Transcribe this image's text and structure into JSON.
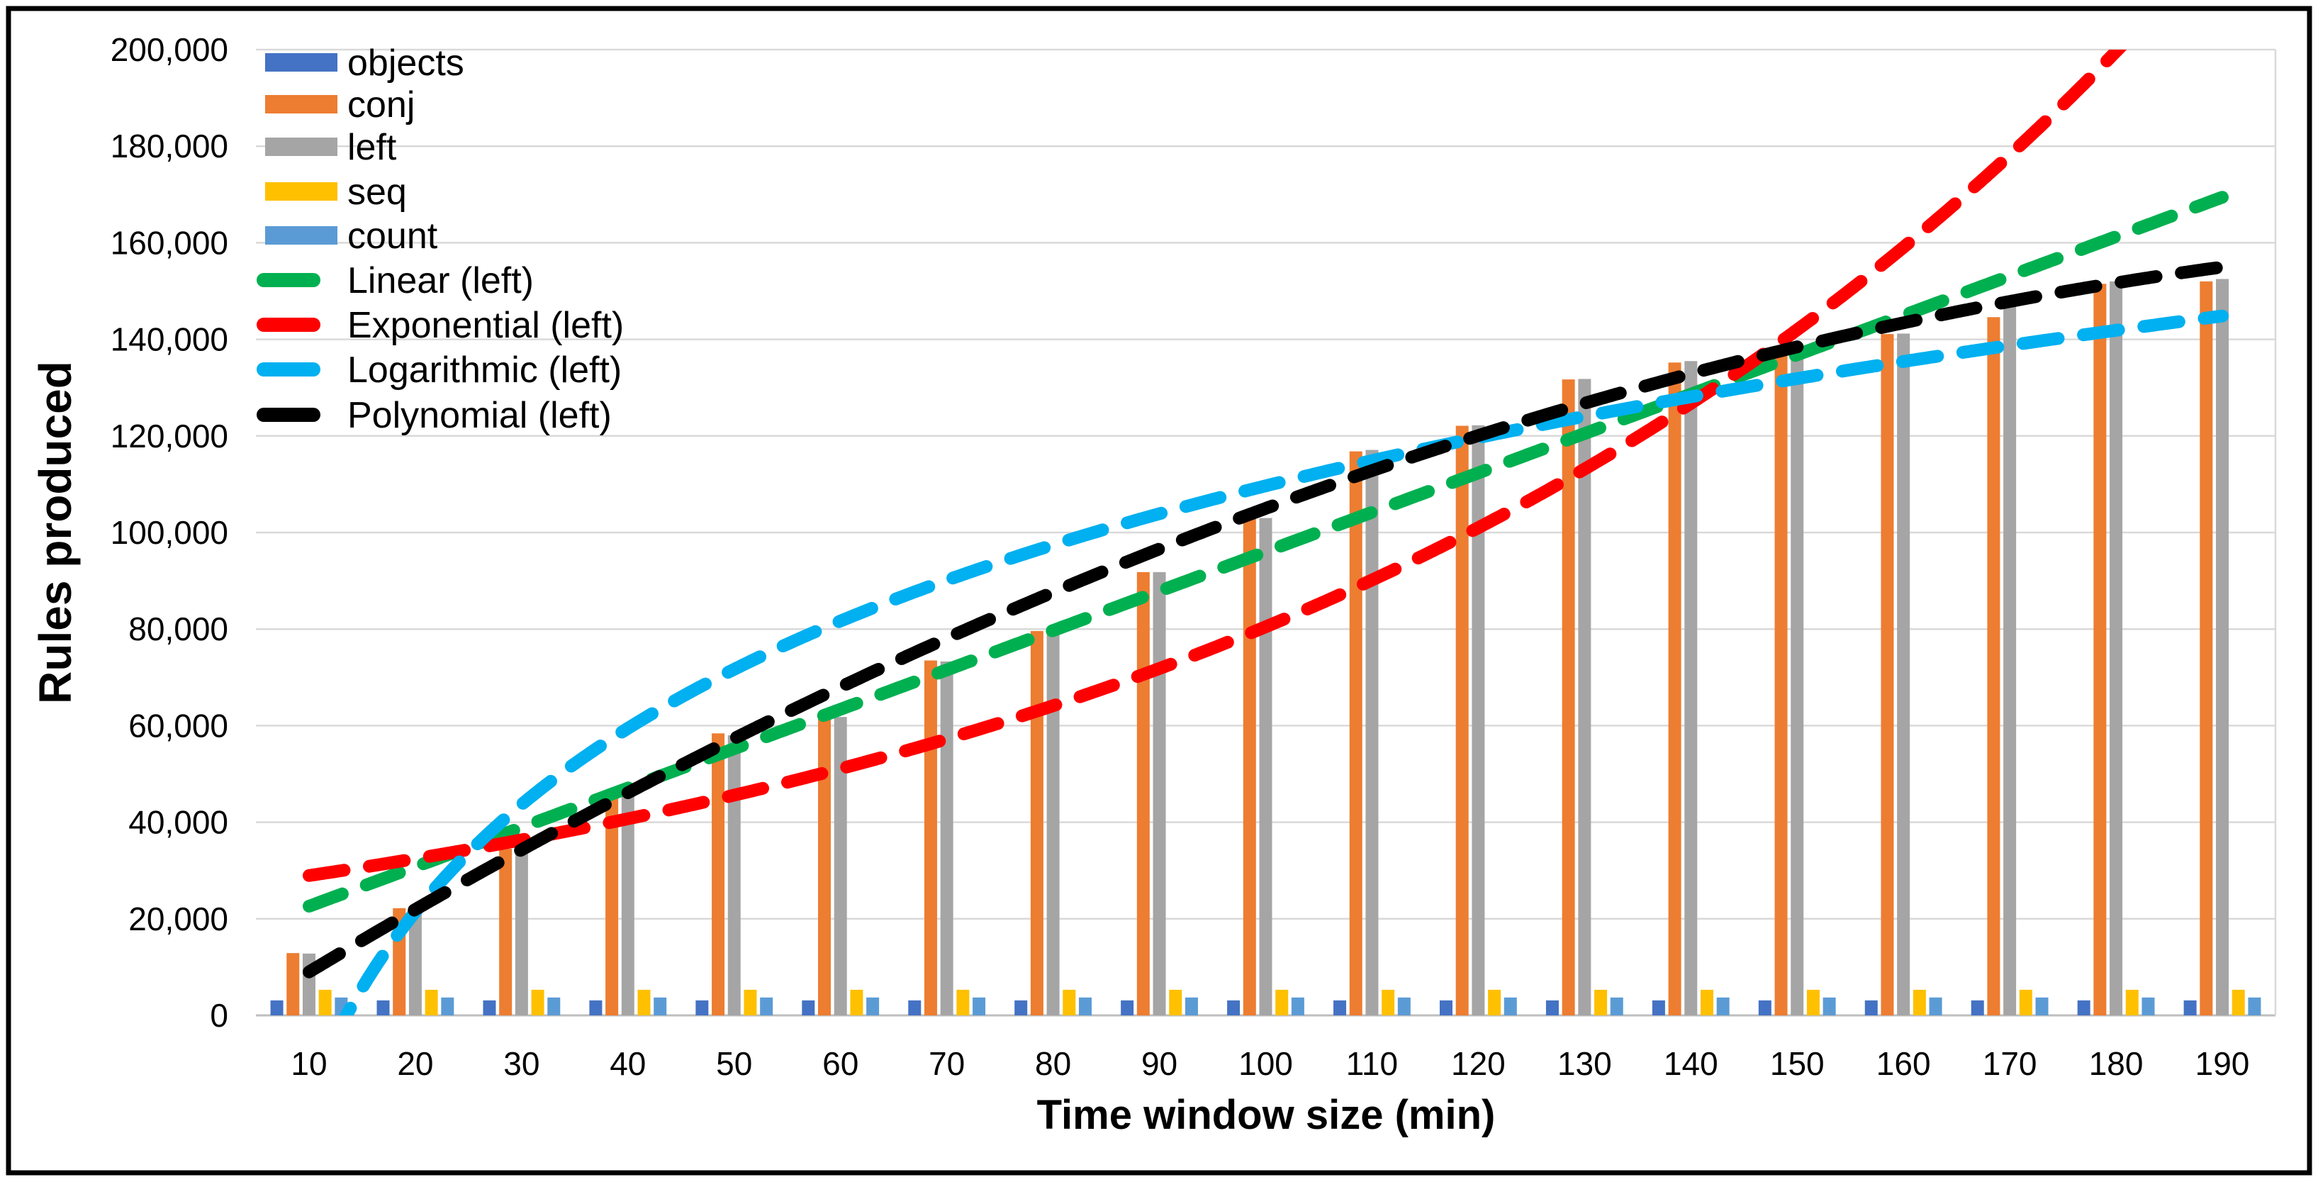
{
  "figure": {
    "background_color": "#FFFFFF",
    "border_color": "#000000",
    "gridline_color": "#D9D9D9",
    "axis_line_color": "#BFBFBF"
  },
  "y_axis": {
    "title": "Rules produced",
    "min": 0,
    "max": 200000,
    "tick_step": 20000,
    "tick_labels": [
      "0",
      "20,000",
      "40,000",
      "60,000",
      "80,000",
      "100,000",
      "120,000",
      "140,000",
      "160,000",
      "180,000",
      "200,000"
    ],
    "tick_values": [
      0,
      20000,
      40000,
      60000,
      80000,
      100000,
      120000,
      140000,
      160000,
      180000,
      200000
    ]
  },
  "x_axis": {
    "title": "Time window size (min)",
    "tick_labels": [
      "10",
      "20",
      "30",
      "40",
      "50",
      "60",
      "70",
      "80",
      "90",
      "100",
      "110",
      "120",
      "130",
      "140",
      "150",
      "160",
      "170",
      "180",
      "190"
    ]
  },
  "legend": [
    {
      "label": "objects",
      "kind": "bar",
      "color": "#4472C4"
    },
    {
      "label": "conj",
      "kind": "bar",
      "color": "#ED7D31"
    },
    {
      "label": "left",
      "kind": "bar",
      "color": "#A5A5A5"
    },
    {
      "label": "seq",
      "kind": "bar",
      "color": "#FFC000"
    },
    {
      "label": "count",
      "kind": "bar",
      "color": "#5B9BD5"
    },
    {
      "label": "Linear (left)",
      "kind": "line",
      "color": "#00B050"
    },
    {
      "label": "Exponential (left)",
      "kind": "line",
      "color": "#FF0000"
    },
    {
      "label": "Logarithmic (left)",
      "kind": "line",
      "color": "#00B0F0"
    },
    {
      "label": "Polynomial (left)",
      "kind": "line",
      "color": "#000000"
    }
  ],
  "chart_data": {
    "type": "bar",
    "subtype": "grouped-bars-with-dashed-trendlines",
    "title": "",
    "xlabel": "Time window size (min)",
    "ylabel": "Rules produced",
    "ylim": [
      0,
      200000
    ],
    "grid": "horizontal",
    "legend_position": "top-left-inside",
    "categories": [
      10,
      20,
      30,
      40,
      50,
      60,
      70,
      80,
      90,
      100,
      110,
      120,
      130,
      140,
      150,
      160,
      170,
      180,
      190
    ],
    "series": [
      {
        "name": "objects",
        "color": "#4472C4",
        "values": [
          3100,
          3100,
          3100,
          3100,
          3100,
          3100,
          3100,
          3100,
          3100,
          3100,
          3100,
          3100,
          3100,
          3100,
          3100,
          3100,
          3100,
          3100,
          3100
        ]
      },
      {
        "name": "conj",
        "color": "#ED7D31",
        "values": [
          12900,
          22200,
          34500,
          46000,
          58400,
          61800,
          73500,
          79600,
          91800,
          103700,
          116800,
          122100,
          131700,
          135200,
          138500,
          141100,
          144600,
          151500,
          152000
        ]
      },
      {
        "name": "left",
        "color": "#A5A5A5",
        "values": [
          12800,
          22200,
          35800,
          45800,
          58000,
          61800,
          73300,
          79700,
          91800,
          103000,
          117100,
          122200,
          131800,
          135500,
          138600,
          141200,
          147000,
          152000,
          152500
        ]
      },
      {
        "name": "seq",
        "color": "#FFC000",
        "values": [
          5300,
          5300,
          5300,
          5300,
          5300,
          5300,
          5300,
          5300,
          5300,
          5300,
          5300,
          5300,
          5300,
          5300,
          5300,
          5300,
          5300,
          5300,
          5300
        ]
      },
      {
        "name": "count",
        "color": "#5B9BD5",
        "values": [
          3700,
          3700,
          3700,
          3700,
          3700,
          3700,
          3700,
          3700,
          3700,
          3700,
          3700,
          3700,
          3700,
          3700,
          3700,
          3700,
          3700,
          3700,
          3700
        ]
      }
    ],
    "trendlines": [
      {
        "name": "Linear (left)",
        "color": "#00B050",
        "type": "linear",
        "slope": 815.7,
        "intercept": 14450
      },
      {
        "name": "Exponential (left)",
        "color": "#FF0000",
        "type": "exponential",
        "coeff": 25850,
        "exp_rate": 0.011356
      },
      {
        "name": "Logarithmic (left)",
        "color": "#00B0F0",
        "type": "logarithmic",
        "ln_coeff": 54800,
        "ln_intercept": -142700
      },
      {
        "name": "Polynomial (left)",
        "color": "#000000",
        "type": "polynomial",
        "a2": -2.84,
        "a1": 1379,
        "a0": -4510
      }
    ]
  }
}
